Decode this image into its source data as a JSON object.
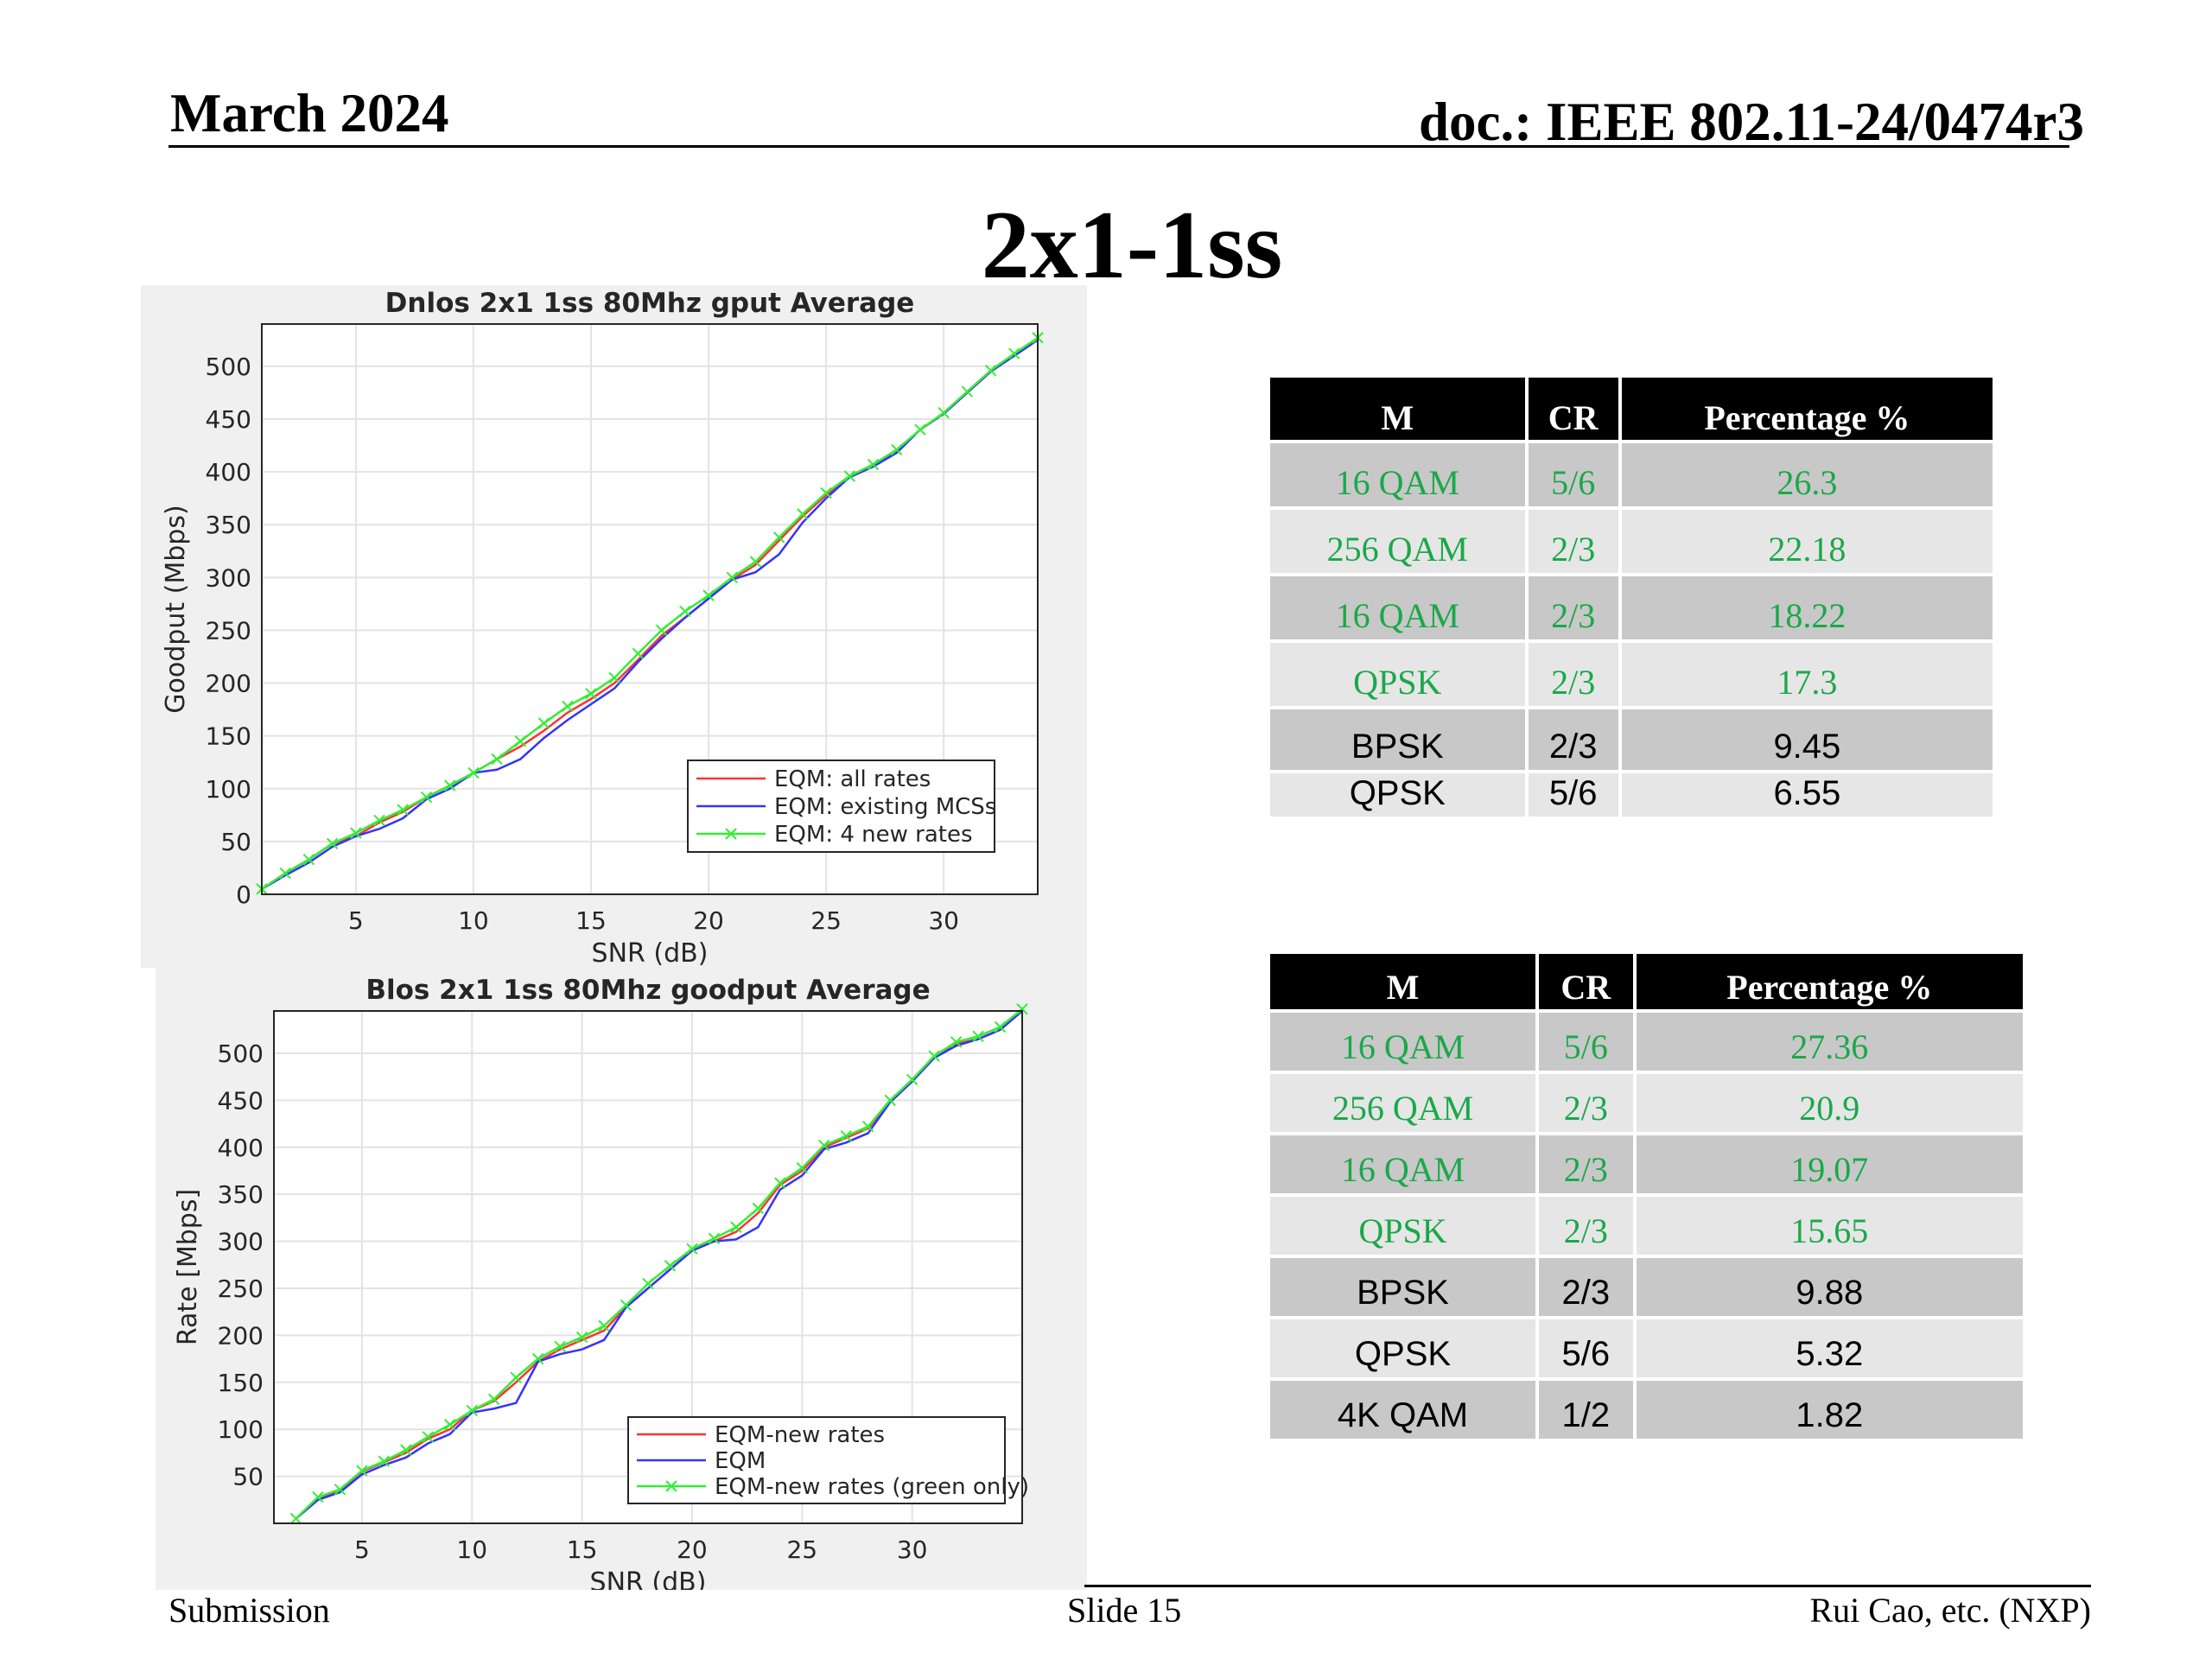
{
  "header": {
    "date": "March 2024",
    "doc": "doc.: IEEE 802.11-24/0474r3"
  },
  "title": "2x1-1ss",
  "footer": {
    "left": "Submission",
    "center": "Slide 15",
    "right": "Rui Cao, etc. (NXP)"
  },
  "chart_data": [
    {
      "type": "line",
      "title": "Dnlos 2x1 1ss 80Mhz gput Average",
      "xlabel": "SNR (dB)",
      "ylabel": "Goodput (Mbps)",
      "xlim": [
        1,
        34
      ],
      "ylim": [
        0,
        540
      ],
      "xticks": [
        5,
        10,
        15,
        20,
        25,
        30
      ],
      "yticks": [
        0,
        50,
        100,
        150,
        200,
        250,
        300,
        350,
        400,
        450,
        500
      ],
      "grid": true,
      "legend_position": "lower-right",
      "series": [
        {
          "name": "EQM: all rates",
          "color": "#ff3333",
          "x": [
            1,
            2,
            3,
            4,
            5,
            6,
            7,
            8,
            9,
            10,
            11,
            12,
            13,
            14,
            15,
            16,
            17,
            18,
            19,
            20,
            21,
            22,
            23,
            24,
            25,
            26,
            27,
            28,
            29,
            30,
            31,
            32,
            33,
            34
          ],
          "y": [
            5,
            20,
            33,
            48,
            55,
            68,
            78,
            92,
            103,
            115,
            128,
            140,
            155,
            172,
            185,
            200,
            222,
            245,
            262,
            280,
            298,
            312,
            335,
            358,
            378,
            395,
            405,
            420,
            440,
            455,
            475,
            495,
            510,
            525
          ]
        },
        {
          "name": "EQM: existing MCSs",
          "color": "#3333ff",
          "x": [
            1,
            2,
            3,
            4,
            5,
            6,
            7,
            8,
            9,
            10,
            11,
            12,
            13,
            14,
            15,
            16,
            17,
            18,
            19,
            20,
            21,
            22,
            23,
            24,
            25,
            26,
            27,
            28,
            29,
            30,
            31,
            32,
            33,
            34
          ],
          "y": [
            5,
            18,
            30,
            45,
            55,
            62,
            72,
            90,
            100,
            115,
            118,
            128,
            148,
            165,
            180,
            195,
            220,
            242,
            262,
            280,
            298,
            305,
            322,
            352,
            375,
            395,
            405,
            418,
            440,
            455,
            475,
            495,
            510,
            525
          ]
        },
        {
          "name": "EQM: 4 new rates",
          "color": "#33ee33",
          "marker": "x",
          "x": [
            1,
            2,
            3,
            4,
            5,
            6,
            7,
            8,
            9,
            10,
            11,
            12,
            13,
            14,
            15,
            16,
            17,
            18,
            19,
            20,
            21,
            22,
            23,
            24,
            25,
            26,
            27,
            28,
            29,
            30,
            31,
            32,
            33,
            34
          ],
          "y": [
            5,
            20,
            33,
            48,
            58,
            70,
            80,
            92,
            103,
            115,
            128,
            145,
            162,
            178,
            190,
            205,
            228,
            250,
            268,
            283,
            300,
            315,
            338,
            360,
            380,
            396,
            407,
            421,
            440,
            456,
            476,
            496,
            512,
            527
          ]
        }
      ]
    },
    {
      "type": "line",
      "title": "Blos 2x1 1ss 80Mhz goodput Average",
      "xlabel": "SNR (dB)",
      "ylabel": "Rate [Mbps]",
      "xlim": [
        1,
        35
      ],
      "ylim": [
        0,
        545
      ],
      "xticks": [
        5,
        10,
        15,
        20,
        25,
        30
      ],
      "yticks": [
        50,
        100,
        150,
        200,
        250,
        300,
        350,
        400,
        450,
        500
      ],
      "grid": true,
      "legend_position": "lower-right",
      "series": [
        {
          "name": "EQM-new rates",
          "color": "#ff3333",
          "x": [
            2,
            3,
            4,
            5,
            6,
            7,
            8,
            9,
            10,
            11,
            12,
            13,
            14,
            15,
            16,
            17,
            18,
            19,
            20,
            21,
            22,
            23,
            24,
            25,
            26,
            27,
            28,
            29,
            30,
            31,
            32,
            33,
            34,
            35
          ],
          "y": [
            5,
            25,
            35,
            55,
            65,
            75,
            90,
            100,
            120,
            130,
            150,
            172,
            185,
            195,
            205,
            230,
            250,
            270,
            290,
            300,
            310,
            330,
            360,
            375,
            400,
            410,
            420,
            448,
            470,
            495,
            510,
            515,
            525,
            545
          ]
        },
        {
          "name": "EQM",
          "color": "#3333ff",
          "x": [
            2,
            3,
            4,
            5,
            6,
            7,
            8,
            9,
            10,
            11,
            12,
            13,
            14,
            15,
            16,
            17,
            18,
            19,
            20,
            21,
            22,
            23,
            24,
            25,
            26,
            27,
            28,
            29,
            30,
            31,
            32,
            33,
            34,
            35
          ],
          "y": [
            5,
            25,
            33,
            52,
            62,
            70,
            85,
            95,
            118,
            122,
            128,
            172,
            180,
            185,
            195,
            230,
            250,
            270,
            290,
            300,
            302,
            315,
            355,
            370,
            398,
            405,
            415,
            448,
            470,
            495,
            508,
            515,
            525,
            545
          ]
        },
        {
          "name": "EQM-new rates (green only)",
          "color": "#33ee33",
          "marker": "x",
          "x": [
            2,
            3,
            4,
            5,
            6,
            7,
            8,
            9,
            10,
            11,
            12,
            13,
            14,
            15,
            16,
            17,
            18,
            19,
            20,
            21,
            22,
            23,
            24,
            25,
            26,
            27,
            28,
            29,
            30,
            31,
            32,
            33,
            34,
            35
          ],
          "y": [
            5,
            28,
            36,
            56,
            66,
            78,
            92,
            105,
            120,
            132,
            155,
            175,
            188,
            198,
            210,
            232,
            255,
            274,
            292,
            303,
            315,
            335,
            362,
            378,
            402,
            412,
            422,
            450,
            472,
            497,
            512,
            518,
            528,
            547
          ]
        }
      ]
    }
  ],
  "table1": {
    "headers": [
      "M",
      "CR",
      "Percentage %"
    ],
    "rows": [
      {
        "m": "16 QAM",
        "cr": "5/6",
        "pct": "26.3",
        "style": "green",
        "shade": "dark"
      },
      {
        "m": "256 QAM",
        "cr": "2/3",
        "pct": "22.18",
        "style": "green",
        "shade": "light"
      },
      {
        "m": "16 QAM",
        "cr": "2/3",
        "pct": "18.22",
        "style": "green",
        "shade": "dark"
      },
      {
        "m": "QPSK",
        "cr": "2/3",
        "pct": "17.3",
        "style": "green",
        "shade": "light"
      },
      {
        "m": "BPSK",
        "cr": "2/3",
        "pct": "9.45",
        "style": "black",
        "shade": "dark"
      },
      {
        "m": "QPSK",
        "cr": "5/6",
        "pct": "6.55",
        "style": "black",
        "shade": "light"
      }
    ]
  },
  "table2": {
    "headers": [
      "M",
      "CR",
      "Percentage %"
    ],
    "rows": [
      {
        "m": "16 QAM",
        "cr": "5/6",
        "pct": "27.36",
        "style": "green",
        "shade": "dark"
      },
      {
        "m": "256 QAM",
        "cr": "2/3",
        "pct": "20.9",
        "style": "green",
        "shade": "light"
      },
      {
        "m": "16 QAM",
        "cr": "2/3",
        "pct": "19.07",
        "style": "green",
        "shade": "dark"
      },
      {
        "m": "QPSK",
        "cr": "2/3",
        "pct": "15.65",
        "style": "green",
        "shade": "light"
      },
      {
        "m": "BPSK",
        "cr": "2/3",
        "pct": "9.88",
        "style": "black",
        "shade": "dark"
      },
      {
        "m": "QPSK",
        "cr": "5/6",
        "pct": "5.32",
        "style": "black",
        "shade": "light"
      },
      {
        "m": "4K QAM",
        "cr": "1/2",
        "pct": "1.82",
        "style": "black",
        "shade": "dark"
      }
    ]
  }
}
